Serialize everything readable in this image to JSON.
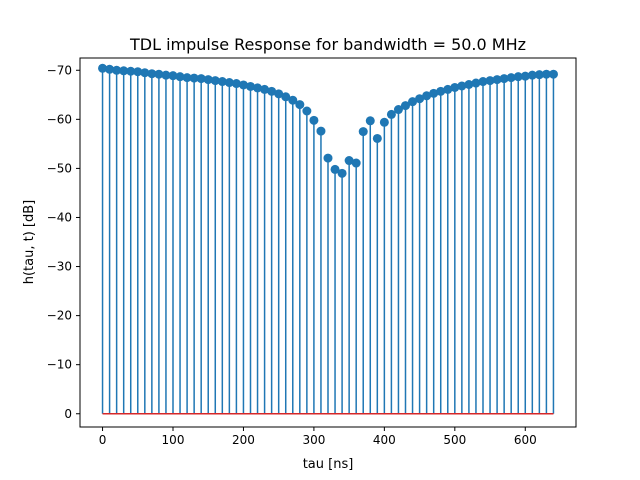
{
  "chart_data": {
    "type": "stem",
    "title": "TDL impulse Response for bandwidth = 50.0 MHz",
    "xlabel": "tau [ns]",
    "ylabel": "h(tau, t) [dB]",
    "xlim": [
      -32,
      672
    ],
    "ylim": [
      2.7,
      -72.5
    ],
    "y_axis_inverted": true,
    "xticks": [
      0,
      100,
      200,
      300,
      400,
      500,
      600
    ],
    "xtick_labels": [
      "0",
      "100",
      "200",
      "300",
      "400",
      "500",
      "600"
    ],
    "yticks": [
      0,
      -10,
      -20,
      -30,
      -40,
      -50,
      -60,
      -70
    ],
    "ytick_labels": [
      "0",
      "−10",
      "−20",
      "−30",
      "−40",
      "−50",
      "−60",
      "−70"
    ],
    "baseline": 0,
    "x": [
      0,
      10,
      20,
      30,
      40,
      50,
      60,
      70,
      80,
      90,
      100,
      110,
      120,
      130,
      140,
      150,
      160,
      170,
      180,
      190,
      200,
      210,
      220,
      230,
      240,
      250,
      260,
      270,
      280,
      290,
      300,
      310,
      320,
      330,
      340,
      350,
      360,
      370,
      380,
      390,
      400,
      410,
      420,
      430,
      440,
      450,
      460,
      470,
      480,
      490,
      500,
      510,
      520,
      530,
      540,
      550,
      560,
      570,
      580,
      590,
      600,
      610,
      620,
      630,
      640
    ],
    "y": [
      -70.4,
      -70.2,
      -70.0,
      -69.9,
      -69.8,
      -69.7,
      -69.5,
      -69.3,
      -69.2,
      -69.0,
      -68.9,
      -68.7,
      -68.5,
      -68.4,
      -68.3,
      -68.1,
      -67.9,
      -67.7,
      -67.5,
      -67.3,
      -67.0,
      -66.7,
      -66.4,
      -66.1,
      -65.7,
      -65.2,
      -64.6,
      -63.9,
      -63.0,
      -61.7,
      -59.8,
      -57.6,
      -52.1,
      -49.8,
      -49.0,
      -51.6,
      -51.1,
      -57.5,
      -59.7,
      -56.1,
      -59.4,
      -61.0,
      -62.0,
      -62.8,
      -63.6,
      -64.2,
      -64.8,
      -65.3,
      -65.7,
      -66.1,
      -66.5,
      -66.8,
      -67.1,
      -67.4,
      -67.7,
      -67.9,
      -68.1,
      -68.3,
      -68.5,
      -68.7,
      -68.8,
      -69.0,
      -69.1,
      -69.2,
      -69.2
    ],
    "colors": {
      "stem": "#1f77b4",
      "marker": "#1f77b4",
      "baseline": "#d62728"
    },
    "grid": false,
    "legend": "none"
  }
}
